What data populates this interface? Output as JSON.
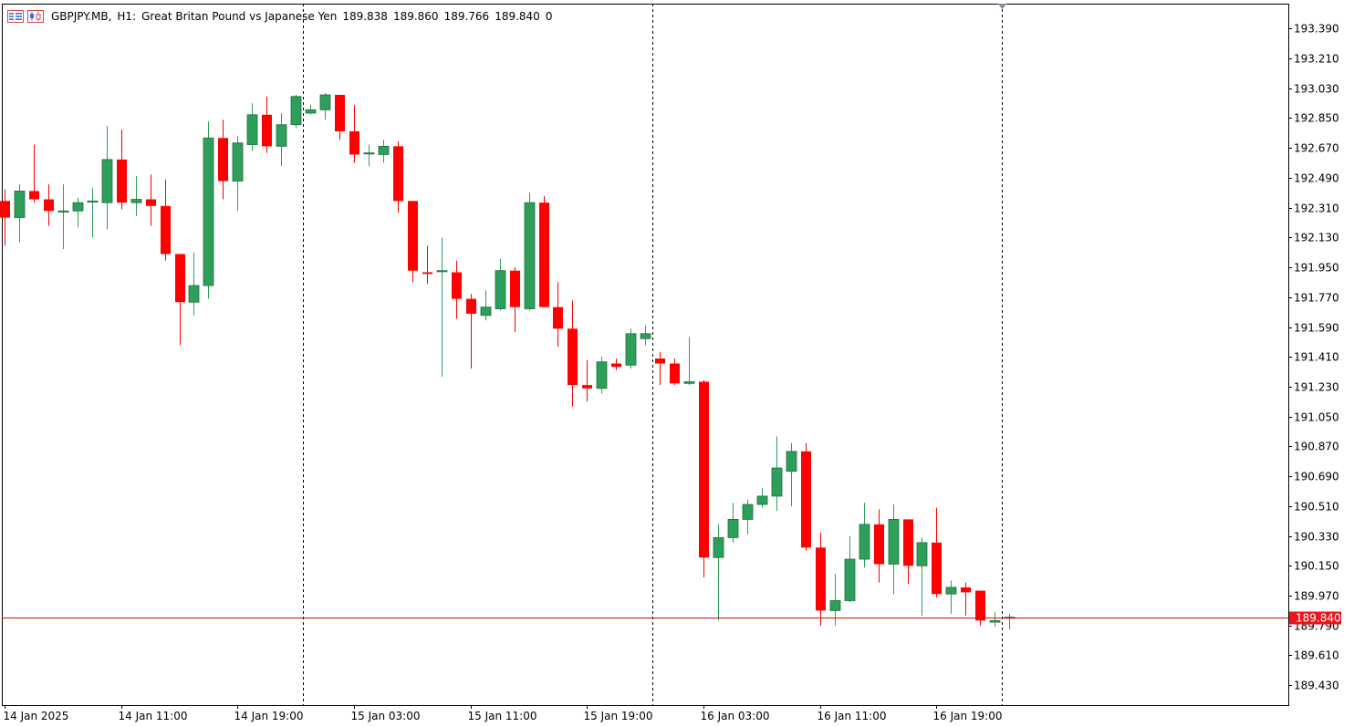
{
  "header": {
    "symbol": "GBPJPY.MB,",
    "timeframe": "H1:",
    "description": "Great Britan Pound vs Japanese Yen",
    "open": "189.838",
    "high": "189.860",
    "low": "189.766",
    "close": "189.840",
    "volume": "0"
  },
  "colors": {
    "bull": "#2E9E5B",
    "bear": "#FF0000",
    "frame": "#000000",
    "price_line": "#CC1010",
    "price_label_bg": "#E8151B"
  },
  "icons": [
    "menu-icon",
    "chart-icon"
  ],
  "chart_data": {
    "type": "candlestick",
    "timeframe": "H1",
    "current_price": 189.84,
    "current_price_label": "189.840",
    "ylim": [
      189.31,
      193.54
    ],
    "y_ticks": [
      "193.390",
      "193.210",
      "193.030",
      "192.850",
      "192.670",
      "192.490",
      "192.310",
      "192.130",
      "191.950",
      "191.770",
      "191.590",
      "191.410",
      "191.230",
      "191.050",
      "190.870",
      "190.690",
      "190.510",
      "190.330",
      "190.150",
      "189.970",
      "189.790",
      "189.610",
      "189.430"
    ],
    "x_labels": [
      {
        "label": "14 Jan 2025",
        "bar": 0
      },
      {
        "label": "14 Jan 11:00",
        "bar": 8
      },
      {
        "label": "14 Jan 19:00",
        "bar": 16
      },
      {
        "label": "15 Jan 03:00",
        "bar": 24
      },
      {
        "label": "15 Jan 11:00",
        "bar": 32
      },
      {
        "label": "15 Jan 19:00",
        "bar": 40
      },
      {
        "label": "16 Jan 03:00",
        "bar": 48
      },
      {
        "label": "16 Jan 11:00",
        "bar": 56
      },
      {
        "label": "16 Jan 19:00",
        "bar": 64
      }
    ],
    "separators": [
      20.5,
      44.5,
      68.5
    ],
    "candles": [
      {
        "o": 192.35,
        "h": 192.42,
        "l": 192.08,
        "c": 192.25
      },
      {
        "o": 192.25,
        "h": 192.45,
        "l": 192.1,
        "c": 192.41
      },
      {
        "o": 192.41,
        "h": 192.69,
        "l": 192.34,
        "c": 192.36
      },
      {
        "o": 192.36,
        "h": 192.45,
        "l": 192.2,
        "c": 192.29
      },
      {
        "o": 192.29,
        "h": 192.45,
        "l": 192.06,
        "c": 192.29
      },
      {
        "o": 192.29,
        "h": 192.37,
        "l": 192.19,
        "c": 192.34
      },
      {
        "o": 192.35,
        "h": 192.43,
        "l": 192.13,
        "c": 192.35
      },
      {
        "o": 192.34,
        "h": 192.8,
        "l": 192.18,
        "c": 192.6
      },
      {
        "o": 192.6,
        "h": 192.78,
        "l": 192.3,
        "c": 192.34
      },
      {
        "o": 192.34,
        "h": 192.5,
        "l": 192.26,
        "c": 192.36
      },
      {
        "o": 192.36,
        "h": 192.51,
        "l": 192.2,
        "c": 192.32
      },
      {
        "o": 192.32,
        "h": 192.48,
        "l": 191.99,
        "c": 192.03
      },
      {
        "o": 192.03,
        "h": 192.03,
        "l": 191.48,
        "c": 191.74
      },
      {
        "o": 191.74,
        "h": 192.04,
        "l": 191.66,
        "c": 191.84
      },
      {
        "o": 191.84,
        "h": 192.83,
        "l": 191.76,
        "c": 192.73
      },
      {
        "o": 192.73,
        "h": 192.84,
        "l": 192.36,
        "c": 192.47
      },
      {
        "o": 192.47,
        "h": 192.74,
        "l": 192.29,
        "c": 192.7
      },
      {
        "o": 192.69,
        "h": 192.94,
        "l": 192.65,
        "c": 192.87
      },
      {
        "o": 192.87,
        "h": 192.98,
        "l": 192.64,
        "c": 192.68
      },
      {
        "o": 192.68,
        "h": 192.88,
        "l": 192.56,
        "c": 192.81
      },
      {
        "o": 192.81,
        "h": 192.99,
        "l": 192.79,
        "c": 192.98
      },
      {
        "o": 192.88,
        "h": 192.93,
        "l": 192.87,
        "c": 192.9
      },
      {
        "o": 192.9,
        "h": 193.0,
        "l": 192.84,
        "c": 192.99
      },
      {
        "o": 192.99,
        "h": 192.99,
        "l": 192.72,
        "c": 192.77
      },
      {
        "o": 192.77,
        "h": 192.93,
        "l": 192.58,
        "c": 192.63
      },
      {
        "o": 192.64,
        "h": 192.69,
        "l": 192.56,
        "c": 192.64
      },
      {
        "o": 192.63,
        "h": 192.72,
        "l": 192.58,
        "c": 192.68
      },
      {
        "o": 192.68,
        "h": 192.71,
        "l": 192.28,
        "c": 192.35
      },
      {
        "o": 192.35,
        "h": 192.35,
        "l": 191.86,
        "c": 191.93
      },
      {
        "o": 191.92,
        "h": 192.08,
        "l": 191.85,
        "c": 191.91
      },
      {
        "o": 191.93,
        "h": 192.13,
        "l": 191.29,
        "c": 191.93
      },
      {
        "o": 191.92,
        "h": 191.99,
        "l": 191.64,
        "c": 191.76
      },
      {
        "o": 191.76,
        "h": 191.79,
        "l": 191.34,
        "c": 191.67
      },
      {
        "o": 191.66,
        "h": 191.81,
        "l": 191.63,
        "c": 191.71
      },
      {
        "o": 191.7,
        "h": 192.0,
        "l": 191.69,
        "c": 191.93
      },
      {
        "o": 191.93,
        "h": 191.95,
        "l": 191.56,
        "c": 191.71
      },
      {
        "o": 191.7,
        "h": 192.4,
        "l": 191.69,
        "c": 192.34
      },
      {
        "o": 192.34,
        "h": 192.38,
        "l": 191.71,
        "c": 191.71
      },
      {
        "o": 191.71,
        "h": 191.86,
        "l": 191.47,
        "c": 191.58
      },
      {
        "o": 191.58,
        "h": 191.75,
        "l": 191.11,
        "c": 191.24
      },
      {
        "o": 191.24,
        "h": 191.39,
        "l": 191.14,
        "c": 191.22
      },
      {
        "o": 191.22,
        "h": 191.41,
        "l": 191.19,
        "c": 191.38
      },
      {
        "o": 191.37,
        "h": 191.4,
        "l": 191.33,
        "c": 191.35
      },
      {
        "o": 191.36,
        "h": 191.58,
        "l": 191.34,
        "c": 191.55
      },
      {
        "o": 191.52,
        "h": 191.6,
        "l": 191.48,
        "c": 191.55
      },
      {
        "o": 191.4,
        "h": 191.44,
        "l": 191.24,
        "c": 191.37
      },
      {
        "o": 191.37,
        "h": 191.4,
        "l": 191.24,
        "c": 191.25
      },
      {
        "o": 191.25,
        "h": 191.53,
        "l": 191.24,
        "c": 191.26
      },
      {
        "o": 191.26,
        "h": 191.27,
        "l": 190.08,
        "c": 190.2
      },
      {
        "o": 190.2,
        "h": 190.4,
        "l": 189.82,
        "c": 190.32
      },
      {
        "o": 190.32,
        "h": 190.53,
        "l": 190.29,
        "c": 190.43
      },
      {
        "o": 190.43,
        "h": 190.55,
        "l": 190.34,
        "c": 190.52
      },
      {
        "o": 190.52,
        "h": 190.62,
        "l": 190.5,
        "c": 190.57
      },
      {
        "o": 190.57,
        "h": 190.93,
        "l": 190.48,
        "c": 190.74
      },
      {
        "o": 190.72,
        "h": 190.89,
        "l": 190.51,
        "c": 190.84
      },
      {
        "o": 190.84,
        "h": 190.89,
        "l": 190.24,
        "c": 190.26
      },
      {
        "o": 190.26,
        "h": 190.35,
        "l": 189.79,
        "c": 189.88
      },
      {
        "o": 189.88,
        "h": 190.1,
        "l": 189.79,
        "c": 189.94
      },
      {
        "o": 189.94,
        "h": 190.33,
        "l": 189.93,
        "c": 190.19
      },
      {
        "o": 190.19,
        "h": 190.53,
        "l": 190.14,
        "c": 190.4
      },
      {
        "o": 190.4,
        "h": 190.49,
        "l": 190.05,
        "c": 190.16
      },
      {
        "o": 190.16,
        "h": 190.52,
        "l": 189.98,
        "c": 190.43
      },
      {
        "o": 190.43,
        "h": 190.43,
        "l": 190.04,
        "c": 190.15
      },
      {
        "o": 190.15,
        "h": 190.32,
        "l": 189.85,
        "c": 190.29
      },
      {
        "o": 190.29,
        "h": 190.5,
        "l": 189.96,
        "c": 189.98
      },
      {
        "o": 189.98,
        "h": 190.06,
        "l": 189.86,
        "c": 190.02
      },
      {
        "o": 190.02,
        "h": 190.05,
        "l": 189.85,
        "c": 189.99
      },
      {
        "o": 190.0,
        "h": 190.0,
        "l": 189.79,
        "c": 189.82
      },
      {
        "o": 189.81,
        "h": 189.87,
        "l": 189.78,
        "c": 189.82
      },
      {
        "o": 189.838,
        "h": 189.86,
        "l": 189.766,
        "c": 189.84
      }
    ]
  }
}
